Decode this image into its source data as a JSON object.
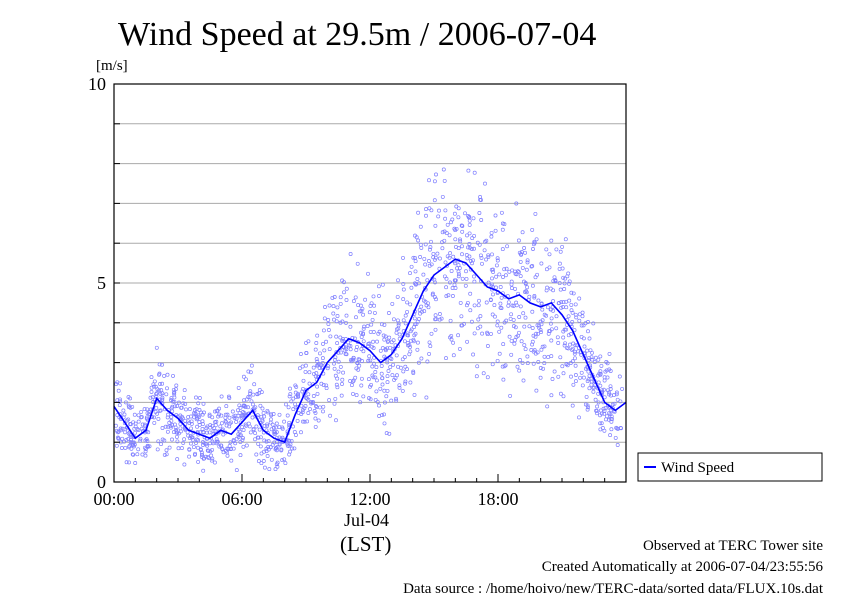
{
  "chart_data": {
    "type": "line",
    "title": "Wind Speed at 29.5m / 2006-07-04",
    "ylabel": "[m/s]",
    "xlabel": "(LST)",
    "date_label": "Jul-04",
    "xlim": [
      "00:00",
      "24:00"
    ],
    "ylim": [
      0,
      10
    ],
    "x_ticks": [
      "00:00",
      "06:00",
      "12:00",
      "18:00"
    ],
    "y_ticks": [
      0,
      5,
      10
    ],
    "grid": true,
    "legend_position": "right",
    "series": [
      {
        "name": "Wind Speed",
        "color": "#0000ff",
        "scatter_color": "#8080ff",
        "x": [
          "00:00",
          "00:30",
          "01:00",
          "01:30",
          "02:00",
          "02:30",
          "03:00",
          "03:30",
          "04:00",
          "04:30",
          "05:00",
          "05:30",
          "06:00",
          "06:30",
          "07:00",
          "07:30",
          "08:00",
          "08:30",
          "09:00",
          "09:30",
          "10:00",
          "10:30",
          "11:00",
          "11:30",
          "12:00",
          "12:30",
          "13:00",
          "13:30",
          "14:00",
          "14:30",
          "15:00",
          "15:30",
          "16:00",
          "16:30",
          "17:00",
          "17:30",
          "18:00",
          "18:30",
          "19:00",
          "19:30",
          "20:00",
          "20:30",
          "21:00",
          "21:30",
          "22:00",
          "22:30",
          "23:00",
          "23:30",
          "24:00"
        ],
        "values": [
          1.9,
          1.5,
          1.1,
          1.3,
          2.1,
          1.8,
          1.6,
          1.3,
          1.2,
          1.1,
          1.3,
          1.2,
          1.5,
          1.8,
          1.3,
          1.1,
          1.0,
          1.7,
          2.3,
          2.5,
          3.0,
          3.3,
          3.6,
          3.5,
          3.3,
          3.0,
          3.2,
          3.6,
          4.2,
          4.8,
          5.2,
          5.4,
          5.6,
          5.5,
          5.2,
          4.9,
          4.8,
          4.6,
          4.7,
          4.5,
          4.4,
          4.5,
          4.2,
          3.8,
          3.2,
          2.6,
          2.0,
          1.8,
          2.0
        ]
      }
    ]
  },
  "footer": {
    "line1": "Observed at TERC Tower site",
    "line2": "Created Automatically at 2006-07-04/23:55:56",
    "line3": "Data source : /home/hoivo/new/TERC-data/sorted  data/FLUX.10s.dat"
  }
}
